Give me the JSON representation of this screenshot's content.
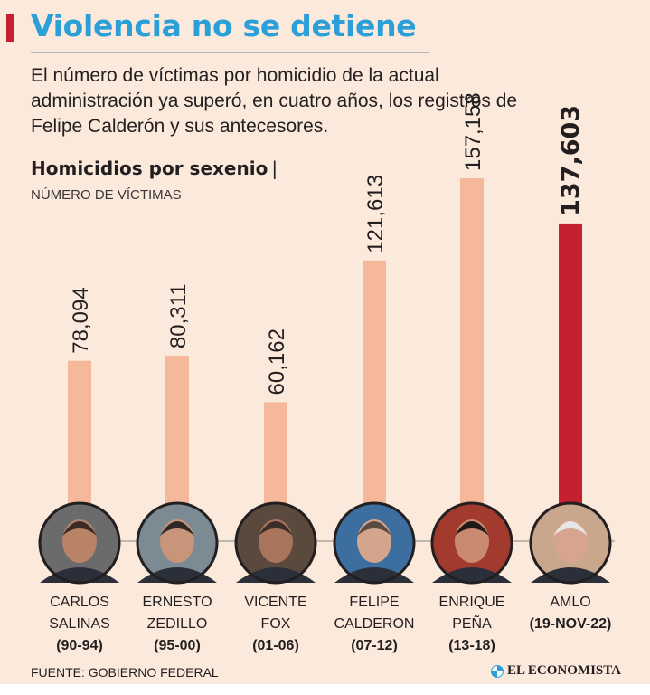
{
  "header": {
    "title": "Violencia no se detiene",
    "subtitle": "El número de víctimas por homicidio de la actual administración ya superó, en cuatro años, los registros de Felipe Calderón y sus antecesores."
  },
  "chart_data": {
    "type": "bar",
    "title": "Homicidios por sexenio",
    "title_separator": "|",
    "subtitle": "NÚMERO DE VÍCTIMAS",
    "categories": [
      "CARLOS SALINAS (90-94)",
      "ERNESTO ZEDILLO (95-00)",
      "VICENTE FOX (01-06)",
      "FELIPE CALDERON (07-12)",
      "ENRIQUE PEÑA (13-18)",
      "AMLO (19-NOV-22)"
    ],
    "values": [
      78094,
      80311,
      60162,
      121613,
      157158,
      137603
    ],
    "value_labels": [
      "78,094",
      "80,311",
      "60,162",
      "121,613",
      "157,158",
      "137,603"
    ],
    "ylim": [
      0,
      157158
    ],
    "grid": false,
    "bar_colors": [
      "#f5b89a",
      "#f5b89a",
      "#f5b89a",
      "#f5b89a",
      "#f5b89a",
      "#c42030"
    ],
    "highlight_index": 5
  },
  "presidents": [
    {
      "name_line1": "CARLOS",
      "name_line2": "SALINAS",
      "period": "(90-94)",
      "photo_icon": "carlos-salinas-portrait-icon"
    },
    {
      "name_line1": "ERNESTO",
      "name_line2": "ZEDILLO",
      "period": "(95-00)",
      "photo_icon": "ernesto-zedillo-portrait-icon"
    },
    {
      "name_line1": "VICENTE",
      "name_line2": "FOX",
      "period": "(01-06)",
      "photo_icon": "vicente-fox-portrait-icon"
    },
    {
      "name_line1": "FELIPE",
      "name_line2": "CALDERON",
      "period": "(07-12)",
      "photo_icon": "felipe-calderon-portrait-icon"
    },
    {
      "name_line1": "ENRIQUE",
      "name_line2": "PEÑA",
      "period": "(13-18)",
      "photo_icon": "enrique-pena-portrait-icon"
    },
    {
      "name_line1": "AMLO",
      "name_line2": "",
      "period": "(19-NOV-22)",
      "photo_icon": "amlo-portrait-icon"
    }
  ],
  "footer": {
    "source": "FUENTE: GOBIERNO FEDERAL",
    "brand": "EL ECONOMISTA",
    "brand_icon": "el-economista-logo-icon"
  },
  "colors": {
    "background": "#fbe9dc",
    "title": "#2a9fd8",
    "accent": "#c42030",
    "bar": "#f5b89a"
  }
}
